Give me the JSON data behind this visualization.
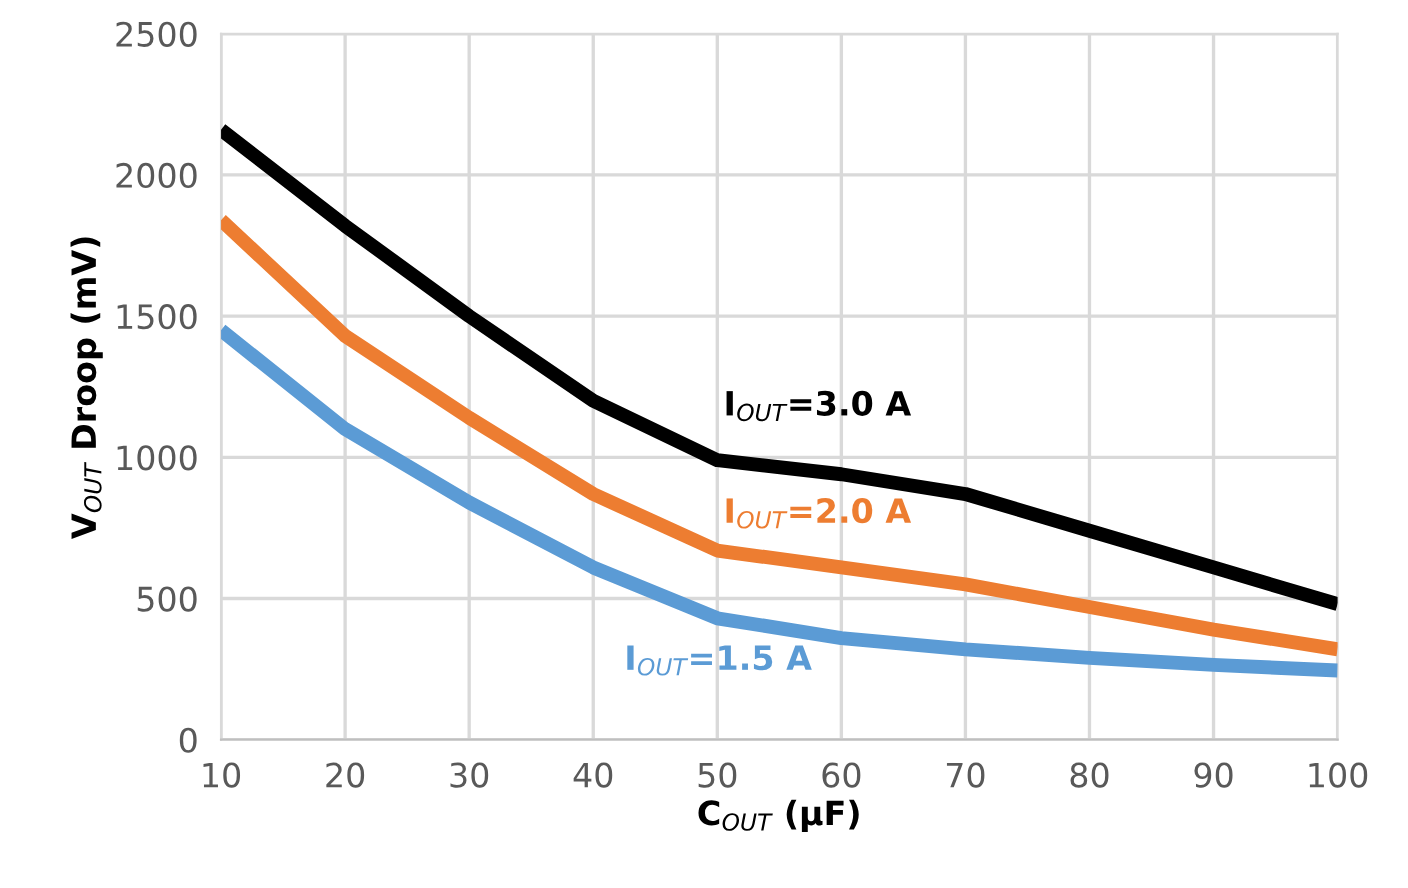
{
  "chart_data": {
    "type": "line",
    "xlabel": "C$_{OUT}$ (µF)",
    "ylabel": "V$_{OUT}$ Droop (mV)",
    "x": [
      10,
      20,
      30,
      40,
      50,
      60,
      70,
      80,
      90,
      100
    ],
    "series": [
      {
        "name": "I$_{OUT}$=3.0 A",
        "color": "#000000",
        "values": [
          2160,
          1820,
          1500,
          1200,
          990,
          940,
          870,
          740,
          610,
          480
        ]
      },
      {
        "name": "I$_{OUT}$=2.0 A",
        "color": "#ed7d31",
        "values": [
          1840,
          1430,
          1140,
          870,
          670,
          610,
          550,
          470,
          390,
          320
        ]
      },
      {
        "name": "I$_{OUT}$=1.5 A",
        "color": "#5b9bd5",
        "values": [
          1450,
          1100,
          840,
          610,
          430,
          360,
          320,
          290,
          265,
          245
        ]
      }
    ],
    "xlim": [
      10,
      100
    ],
    "xticks": [
      10,
      20,
      30,
      40,
      50,
      60,
      70,
      80,
      90,
      100
    ],
    "ylim": [
      0,
      2500
    ],
    "yticks": [
      0,
      500,
      1000,
      1500,
      2000,
      2500
    ],
    "grid": true,
    "legend": false,
    "marker": "none",
    "line_style": "solid"
  }
}
